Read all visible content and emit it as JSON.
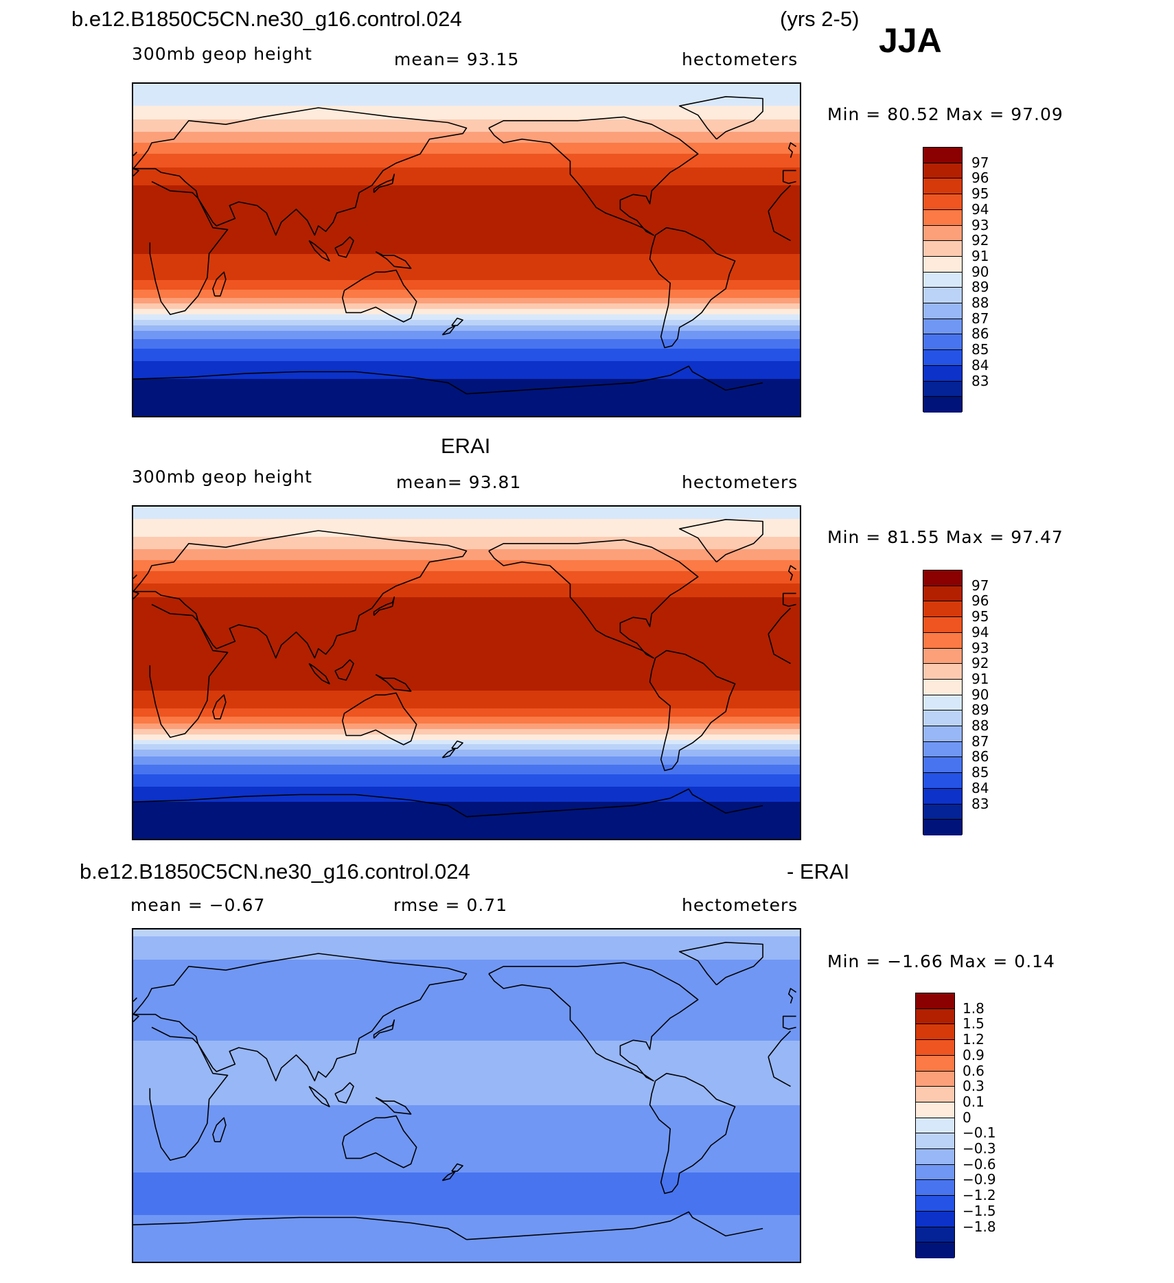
{
  "header": {
    "case_name": "b.e12.B1850C5CN.ne30_g16.control.024",
    "years": "(yrs 2-5)",
    "season": "JJA"
  },
  "panels": [
    {
      "id": "model",
      "title": "",
      "variable": "300mb geop height",
      "stat": "mean=   93.15",
      "units": "hectometers",
      "minmax": "Min =   80.52  Max =   97.09",
      "colorbar": {
        "labels": [
          "97",
          "96",
          "95",
          "94",
          "93",
          "92",
          "91",
          "90",
          "89",
          "88",
          "87",
          "86",
          "85",
          "84",
          "83"
        ],
        "colors": [
          "#8b0000",
          "#b22000",
          "#d63a0a",
          "#ee5520",
          "#fb7a45",
          "#fca07a",
          "#fdcab0",
          "#feebdc",
          "#d8e8fb",
          "#bcd3f8",
          "#98b7f6",
          "#7097f4",
          "#4874ef",
          "#2453e6",
          "#0c32c9",
          "#032396",
          "#00137a"
        ]
      },
      "field": {
        "lat_levels": [
          {
            "lat": 90,
            "value": 89.5
          },
          {
            "lat": 80,
            "value": 89.8
          },
          {
            "lat": 72,
            "value": 90.8
          },
          {
            "lat": 65,
            "value": 91.8
          },
          {
            "lat": 58,
            "value": 93.0
          },
          {
            "lat": 50,
            "value": 94.3
          },
          {
            "lat": 42,
            "value": 95.4
          },
          {
            "lat": 35,
            "value": 96.0
          },
          {
            "lat": 25,
            "value": 96.3
          },
          {
            "lat": 10,
            "value": 96.2
          },
          {
            "lat": 0,
            "value": 96.1
          },
          {
            "lat": -10,
            "value": 95.7
          },
          {
            "lat": -18,
            "value": 94.8
          },
          {
            "lat": -25,
            "value": 93.3
          },
          {
            "lat": -30,
            "value": 91.8
          },
          {
            "lat": -35,
            "value": 90.0
          },
          {
            "lat": -40,
            "value": 88.2
          },
          {
            "lat": -45,
            "value": 86.6
          },
          {
            "lat": -52,
            "value": 85.2
          },
          {
            "lat": -60,
            "value": 84.0
          },
          {
            "lat": -70,
            "value": 83.0
          },
          {
            "lat": -90,
            "value": 82.0
          }
        ]
      }
    },
    {
      "id": "obs",
      "title": "ERAI",
      "variable": "300mb geop height",
      "stat": "mean=   93.81",
      "units": "hectometers",
      "minmax": "Min =   81.55  Max =   97.47",
      "colorbar": {
        "labels": [
          "97",
          "96",
          "95",
          "94",
          "93",
          "92",
          "91",
          "90",
          "89",
          "88",
          "87",
          "86",
          "85",
          "84",
          "83"
        ],
        "colors": [
          "#8b0000",
          "#b22000",
          "#d63a0a",
          "#ee5520",
          "#fb7a45",
          "#fca07a",
          "#fdcab0",
          "#feebdc",
          "#d8e8fb",
          "#bcd3f8",
          "#98b7f6",
          "#7097f4",
          "#4874ef",
          "#2453e6",
          "#0c32c9",
          "#032396",
          "#00137a"
        ]
      },
      "field": {
        "lat_levels": [
          {
            "lat": 90,
            "value": 89.6
          },
          {
            "lat": 80,
            "value": 90.2
          },
          {
            "lat": 72,
            "value": 91.2
          },
          {
            "lat": 65,
            "value": 92.3
          },
          {
            "lat": 58,
            "value": 93.5
          },
          {
            "lat": 50,
            "value": 94.8
          },
          {
            "lat": 42,
            "value": 95.9
          },
          {
            "lat": 33,
            "value": 96.6
          },
          {
            "lat": 25,
            "value": 96.7
          },
          {
            "lat": 10,
            "value": 96.4
          },
          {
            "lat": 0,
            "value": 96.3
          },
          {
            "lat": -10,
            "value": 96.0
          },
          {
            "lat": -18,
            "value": 95.3
          },
          {
            "lat": -25,
            "value": 93.8
          },
          {
            "lat": -30,
            "value": 92.2
          },
          {
            "lat": -35,
            "value": 90.4
          },
          {
            "lat": -40,
            "value": 88.6
          },
          {
            "lat": -45,
            "value": 87.0
          },
          {
            "lat": -52,
            "value": 85.5
          },
          {
            "lat": -60,
            "value": 84.2
          },
          {
            "lat": -70,
            "value": 83.0
          },
          {
            "lat": -90,
            "value": 82.0
          }
        ]
      }
    },
    {
      "id": "diff",
      "title": "",
      "variable": "mean =   −0.67",
      "stat": "rmse =    0.71",
      "units": "hectometers",
      "minmax": "Min =   −1.66  Max =    0.14",
      "colorbar": {
        "labels": [
          "1.8",
          "1.5",
          "1.2",
          "0.9",
          "0.6",
          "0.3",
          "0.1",
          "0",
          "−0.1",
          "−0.3",
          "−0.6",
          "−0.9",
          "−1.2",
          "−1.5",
          "−1.8"
        ],
        "colors": [
          "#8b0000",
          "#b22000",
          "#d63a0a",
          "#ee5520",
          "#fb7a45",
          "#fca07a",
          "#fdcab0",
          "#feebdc",
          "#d8e8fb",
          "#bcd3f8",
          "#98b7f6",
          "#7097f4",
          "#4874ef",
          "#2453e6",
          "#0c32c9",
          "#032396",
          "#00137a"
        ]
      },
      "field": {
        "lat_levels": [
          {
            "lat": 90,
            "value": -0.2
          },
          {
            "lat": 80,
            "value": -0.45
          },
          {
            "lat": 70,
            "value": -0.7
          },
          {
            "lat": 60,
            "value": -0.75
          },
          {
            "lat": 50,
            "value": -0.7
          },
          {
            "lat": 40,
            "value": -0.75
          },
          {
            "lat": 30,
            "value": -0.6
          },
          {
            "lat": 15,
            "value": -0.5
          },
          {
            "lat": 0,
            "value": -0.55
          },
          {
            "lat": -15,
            "value": -0.7
          },
          {
            "lat": -25,
            "value": -0.75
          },
          {
            "lat": -35,
            "value": -0.8
          },
          {
            "lat": -45,
            "value": -0.95
          },
          {
            "lat": -55,
            "value": -1.0
          },
          {
            "lat": -65,
            "value": -0.9
          },
          {
            "lat": -75,
            "value": -0.8
          },
          {
            "lat": -90,
            "value": -0.8
          }
        ]
      }
    }
  ],
  "diff_header": {
    "left": "b.e12.B1850C5CN.ne30_g16.control.024",
    "right": "- ERAI"
  }
}
